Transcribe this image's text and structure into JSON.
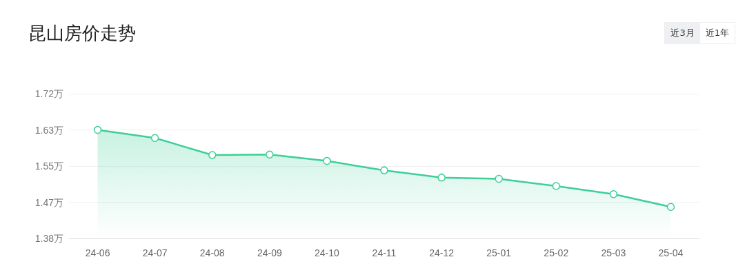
{
  "chart_data": {
    "type": "area",
    "title": "昆山房价走势",
    "annotations": [
      "近3月",
      "近1年"
    ],
    "categories": [
      "24-06",
      "24-07",
      "24-08",
      "24-09",
      "24-10",
      "24-11",
      "24-12",
      "25-01",
      "25-02",
      "25-03",
      "25-04"
    ],
    "series": [
      {
        "color": "#3ccf98",
        "values": [
          1.635,
          1.616,
          1.576,
          1.577,
          1.562,
          1.54,
          1.523,
          1.52,
          1.503,
          1.484,
          1.454
        ]
      }
    ],
    "ylim": [
      1.38,
      1.72
    ],
    "yticks": [
      {
        "value": 1.38,
        "label": "1.38万"
      },
      {
        "value": 1.465,
        "label": "1.47万"
      },
      {
        "value": 1.55,
        "label": "1.55万"
      },
      {
        "value": 1.635,
        "label": "1.63万"
      },
      {
        "value": 1.72,
        "label": "1.72万"
      }
    ],
    "grid": "y",
    "marker": "circle"
  }
}
